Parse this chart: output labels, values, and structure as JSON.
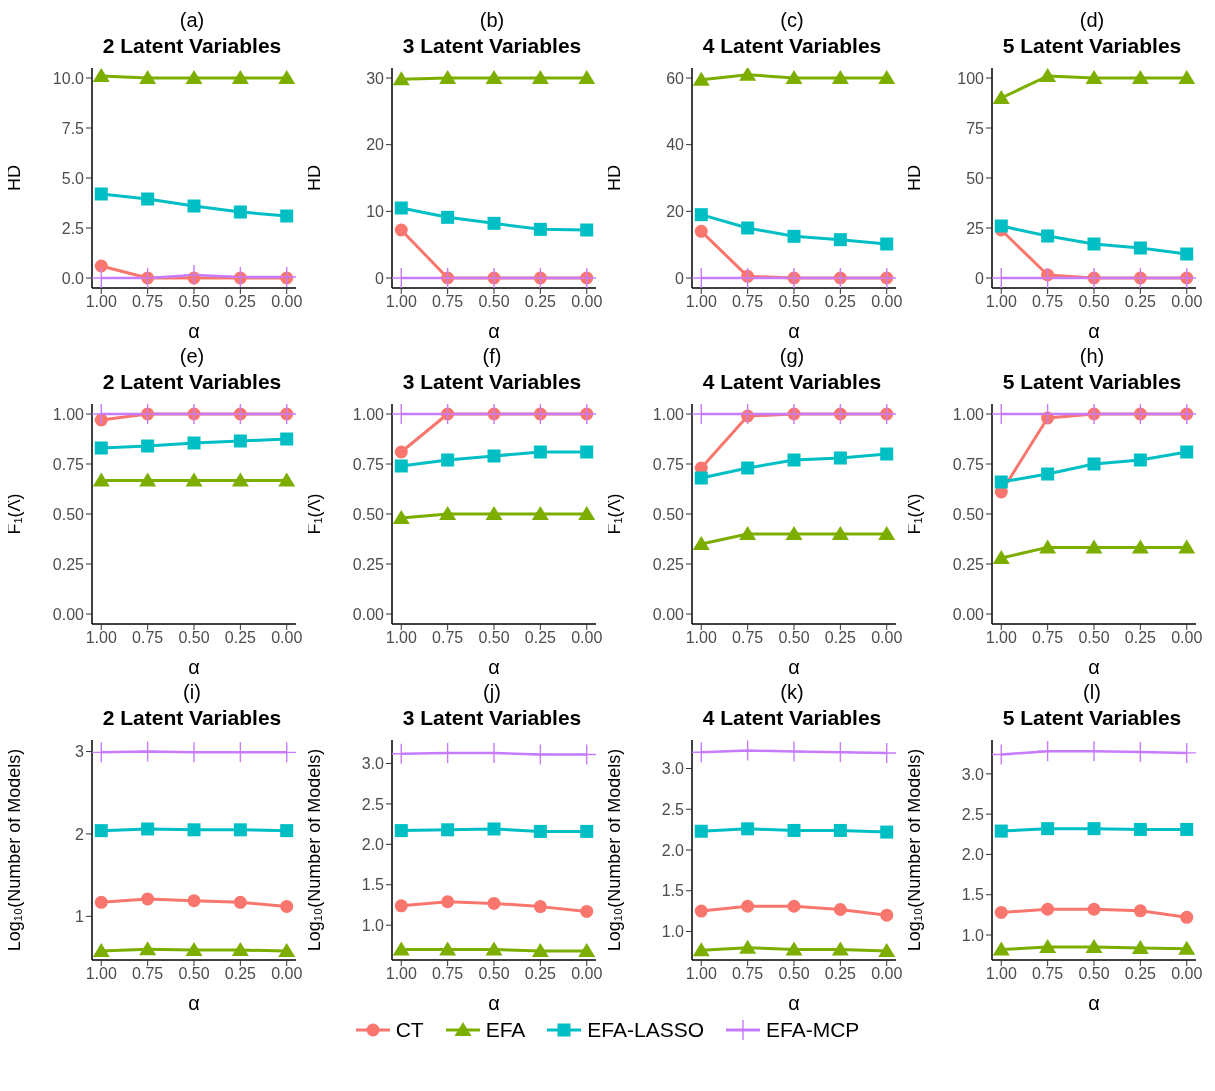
{
  "chart_data": [
    {
      "type": "line",
      "title": "(a)",
      "subtitle": "2 Latent Variables",
      "xlabel": "α",
      "ylabel": "HD",
      "legend": "bottom",
      "x": [
        1,
        0.75,
        0.5,
        0.25,
        0
      ],
      "xlim": [
        1.05,
        -0.05
      ],
      "xticks": [
        {
          "value": 1,
          "label": "1.00"
        },
        {
          "value": 0.75,
          "label": "0.75"
        },
        {
          "value": 0.5,
          "label": "0.50"
        },
        {
          "value": 0.25,
          "label": "0.25"
        },
        {
          "value": 0,
          "label": "0.00"
        }
      ],
      "ylim": [
        -0.5,
        10.5
      ],
      "yticks": [
        {
          "value": 0,
          "label": "0.0"
        },
        {
          "value": 2.5,
          "label": "2.5"
        },
        {
          "value": 5,
          "label": "5.0"
        },
        {
          "value": 7.5,
          "label": "7.5"
        },
        {
          "value": 10,
          "label": "10.0"
        }
      ],
      "series": [
        {
          "name": "CT",
          "color": "#f8766d",
          "marker": "circle",
          "values": [
            0.6,
            0,
            0,
            0,
            0
          ]
        },
        {
          "name": "EFA",
          "color": "#7cae00",
          "marker": "triangle",
          "values": [
            10.1,
            10,
            10,
            10,
            10
          ]
        },
        {
          "name": "EFA-LASSO",
          "color": "#00bfc4",
          "marker": "square",
          "values": [
            4.2,
            3.95,
            3.6,
            3.3,
            3.1
          ]
        },
        {
          "name": "EFA-MCP",
          "color": "#c77cff",
          "marker": "cross",
          "values": [
            0,
            0,
            0.15,
            0.05,
            0.05
          ]
        }
      ]
    },
    {
      "type": "line",
      "title": "(b)",
      "subtitle": "3 Latent Variables",
      "xlabel": "α",
      "ylabel": "HD",
      "x": [
        1,
        0.75,
        0.5,
        0.25,
        0
      ],
      "xlim": [
        1.05,
        -0.05
      ],
      "xticks": [
        {
          "value": 1,
          "label": "1.00"
        },
        {
          "value": 0.75,
          "label": "0.75"
        },
        {
          "value": 0.5,
          "label": "0.50"
        },
        {
          "value": 0.25,
          "label": "0.25"
        },
        {
          "value": 0,
          "label": "0.00"
        }
      ],
      "ylim": [
        -1.5,
        31.5
      ],
      "yticks": [
        0,
        10,
        20,
        30
      ],
      "series": [
        {
          "color": "#f8766d",
          "marker": "circle",
          "values": [
            7.2,
            0,
            0,
            0,
            0
          ]
        },
        {
          "color": "#7cae00",
          "marker": "triangle",
          "values": [
            29.8,
            30,
            30,
            30,
            30
          ]
        },
        {
          "color": "#00bfc4",
          "marker": "square",
          "values": [
            10.5,
            9.1,
            8.2,
            7.3,
            7.2
          ]
        },
        {
          "color": "#c77cff",
          "marker": "cross",
          "values": [
            0,
            0,
            0,
            0,
            0
          ]
        }
      ]
    },
    {
      "type": "line",
      "title": "(c)",
      "subtitle": "4 Latent Variables",
      "xlabel": "α",
      "ylabel": "HD",
      "x": [
        1,
        0.75,
        0.5,
        0.25,
        0
      ],
      "xlim": [
        1.05,
        -0.05
      ],
      "xticks": [
        {
          "value": 1,
          "label": "1.00"
        },
        {
          "value": 0.75,
          "label": "0.75"
        },
        {
          "value": 0.5,
          "label": "0.50"
        },
        {
          "value": 0.25,
          "label": "0.25"
        },
        {
          "value": 0,
          "label": "0.00"
        }
      ],
      "ylim": [
        -3,
        63
      ],
      "yticks": [
        0,
        20,
        40,
        60
      ],
      "series": [
        {
          "color": "#f8766d",
          "marker": "circle",
          "values": [
            14,
            0.5,
            0,
            0,
            0
          ]
        },
        {
          "color": "#7cae00",
          "marker": "triangle",
          "values": [
            59.5,
            61,
            60,
            60,
            60
          ]
        },
        {
          "color": "#00bfc4",
          "marker": "square",
          "values": [
            19,
            15,
            12.5,
            11.5,
            10.2
          ]
        },
        {
          "color": "#c77cff",
          "marker": "cross",
          "values": [
            0,
            0,
            0,
            0,
            0
          ]
        }
      ]
    },
    {
      "type": "line",
      "title": "(d)",
      "subtitle": "5 Latent Variables",
      "xlabel": "α",
      "ylabel": "HD",
      "x": [
        1,
        0.75,
        0.5,
        0.25,
        0
      ],
      "xlim": [
        1.05,
        -0.05
      ],
      "xticks": [
        {
          "value": 1,
          "label": "1.00"
        },
        {
          "value": 0.75,
          "label": "0.75"
        },
        {
          "value": 0.5,
          "label": "0.50"
        },
        {
          "value": 0.25,
          "label": "0.25"
        },
        {
          "value": 0,
          "label": "0.00"
        }
      ],
      "ylim": [
        -5,
        105
      ],
      "yticks": [
        0,
        25,
        50,
        75,
        100
      ],
      "series": [
        {
          "color": "#f8766d",
          "marker": "circle",
          "values": [
            24,
            1.5,
            0,
            0,
            0
          ]
        },
        {
          "color": "#7cae00",
          "marker": "triangle",
          "values": [
            90,
            101,
            100,
            100,
            100
          ]
        },
        {
          "color": "#00bfc4",
          "marker": "square",
          "values": [
            26,
            21,
            17,
            15,
            12
          ]
        },
        {
          "color": "#c77cff",
          "marker": "cross",
          "values": [
            0,
            0,
            0,
            0,
            0
          ]
        }
      ]
    },
    {
      "type": "line",
      "title": "(e)",
      "subtitle": "2 Latent Variables",
      "xlabel": "α",
      "ylabel": "F₁(Λ̂)",
      "x": [
        1,
        0.75,
        0.5,
        0.25,
        0
      ],
      "xlim": [
        1.05,
        -0.05
      ],
      "xticks": [
        {
          "value": 1,
          "label": "1.00"
        },
        {
          "value": 0.75,
          "label": "0.75"
        },
        {
          "value": 0.5,
          "label": "0.50"
        },
        {
          "value": 0.25,
          "label": "0.25"
        },
        {
          "value": 0,
          "label": "0.00"
        }
      ],
      "ylim": [
        -0.05,
        1.05
      ],
      "yticks": [
        {
          "value": 0,
          "label": "0.00"
        },
        {
          "value": 0.25,
          "label": "0.25"
        },
        {
          "value": 0.5,
          "label": "0.50"
        },
        {
          "value": 0.75,
          "label": "0.75"
        },
        {
          "value": 1,
          "label": "1.00"
        }
      ],
      "series": [
        {
          "color": "#f8766d",
          "marker": "circle",
          "values": [
            0.97,
            1,
            1,
            1,
            1
          ]
        },
        {
          "color": "#7cae00",
          "marker": "triangle",
          "values": [
            0.667,
            0.667,
            0.667,
            0.667,
            0.667
          ]
        },
        {
          "color": "#00bfc4",
          "marker": "square",
          "values": [
            0.83,
            0.84,
            0.855,
            0.865,
            0.875
          ]
        },
        {
          "color": "#c77cff",
          "marker": "cross",
          "values": [
            1,
            1,
            1,
            1,
            1
          ]
        }
      ]
    },
    {
      "type": "line",
      "title": "(f)",
      "subtitle": "3 Latent Variables",
      "xlabel": "α",
      "ylabel": "F₁(Λ̂)",
      "x": [
        1,
        0.75,
        0.5,
        0.25,
        0
      ],
      "xlim": [
        1.05,
        -0.05
      ],
      "xticks": [
        {
          "value": 1,
          "label": "1.00"
        },
        {
          "value": 0.75,
          "label": "0.75"
        },
        {
          "value": 0.5,
          "label": "0.50"
        },
        {
          "value": 0.25,
          "label": "0.25"
        },
        {
          "value": 0,
          "label": "0.00"
        }
      ],
      "ylim": [
        -0.05,
        1.05
      ],
      "yticks": [
        {
          "value": 0,
          "label": "0.00"
        },
        {
          "value": 0.25,
          "label": "0.25"
        },
        {
          "value": 0.5,
          "label": "0.50"
        },
        {
          "value": 0.75,
          "label": "0.75"
        },
        {
          "value": 1,
          "label": "1.00"
        }
      ],
      "series": [
        {
          "color": "#f8766d",
          "marker": "circle",
          "values": [
            0.81,
            1,
            1,
            1,
            1
          ]
        },
        {
          "color": "#7cae00",
          "marker": "triangle",
          "values": [
            0.48,
            0.5,
            0.5,
            0.5,
            0.5
          ]
        },
        {
          "color": "#00bfc4",
          "marker": "square",
          "values": [
            0.74,
            0.77,
            0.79,
            0.81,
            0.81
          ]
        },
        {
          "color": "#c77cff",
          "marker": "cross",
          "values": [
            1,
            1,
            1,
            1,
            1
          ]
        }
      ]
    },
    {
      "type": "line",
      "title": "(g)",
      "subtitle": "4 Latent Variables",
      "xlabel": "α",
      "ylabel": "F₁(Λ̂)",
      "x": [
        1,
        0.75,
        0.5,
        0.25,
        0
      ],
      "xlim": [
        1.05,
        -0.05
      ],
      "xticks": [
        {
          "value": 1,
          "label": "1.00"
        },
        {
          "value": 0.75,
          "label": "0.75"
        },
        {
          "value": 0.5,
          "label": "0.50"
        },
        {
          "value": 0.25,
          "label": "0.25"
        },
        {
          "value": 0,
          "label": "0.00"
        }
      ],
      "ylim": [
        -0.05,
        1.05
      ],
      "yticks": [
        {
          "value": 0,
          "label": "0.00"
        },
        {
          "value": 0.25,
          "label": "0.25"
        },
        {
          "value": 0.5,
          "label": "0.50"
        },
        {
          "value": 0.75,
          "label": "0.75"
        },
        {
          "value": 1,
          "label": "1.00"
        }
      ],
      "series": [
        {
          "color": "#f8766d",
          "marker": "circle",
          "values": [
            0.73,
            0.99,
            1,
            1,
            1
          ]
        },
        {
          "color": "#7cae00",
          "marker": "triangle",
          "values": [
            0.35,
            0.4,
            0.4,
            0.4,
            0.4
          ]
        },
        {
          "color": "#00bfc4",
          "marker": "square",
          "values": [
            0.68,
            0.73,
            0.77,
            0.78,
            0.8
          ]
        },
        {
          "color": "#c77cff",
          "marker": "cross",
          "values": [
            1,
            1,
            1,
            1,
            1
          ]
        }
      ]
    },
    {
      "type": "line",
      "title": "(h)",
      "subtitle": "5 Latent Variables",
      "xlabel": "α",
      "ylabel": "F₁(Λ̂)",
      "x": [
        1,
        0.75,
        0.5,
        0.25,
        0
      ],
      "xlim": [
        1.05,
        -0.05
      ],
      "xticks": [
        {
          "value": 1,
          "label": "1.00"
        },
        {
          "value": 0.75,
          "label": "0.75"
        },
        {
          "value": 0.5,
          "label": "0.50"
        },
        {
          "value": 0.25,
          "label": "0.25"
        },
        {
          "value": 0,
          "label": "0.00"
        }
      ],
      "ylim": [
        -0.05,
        1.05
      ],
      "yticks": [
        {
          "value": 0,
          "label": "0.00"
        },
        {
          "value": 0.25,
          "label": "0.25"
        },
        {
          "value": 0.5,
          "label": "0.50"
        },
        {
          "value": 0.75,
          "label": "0.75"
        },
        {
          "value": 1,
          "label": "1.00"
        }
      ],
      "series": [
        {
          "color": "#f8766d",
          "marker": "circle",
          "values": [
            0.61,
            0.98,
            1,
            1,
            1
          ]
        },
        {
          "color": "#7cae00",
          "marker": "triangle",
          "values": [
            0.28,
            0.333,
            0.333,
            0.333,
            0.333
          ]
        },
        {
          "color": "#00bfc4",
          "marker": "square",
          "values": [
            0.66,
            0.7,
            0.75,
            0.77,
            0.81
          ]
        },
        {
          "color": "#c77cff",
          "marker": "cross",
          "values": [
            1,
            1,
            1,
            1,
            1
          ]
        }
      ]
    },
    {
      "type": "line",
      "title": "(i)",
      "subtitle": "2 Latent Variables",
      "xlabel": "α",
      "ylabel": "Log₁₀(Number of Models)",
      "x": [
        1,
        0.75,
        0.5,
        0.25,
        0
      ],
      "xlim": [
        1.05,
        -0.05
      ],
      "xticks": [
        {
          "value": 1,
          "label": "1.00"
        },
        {
          "value": 0.75,
          "label": "0.75"
        },
        {
          "value": 0.5,
          "label": "0.50"
        },
        {
          "value": 0.25,
          "label": "0.25"
        },
        {
          "value": 0,
          "label": "0.00"
        }
      ],
      "ylim": [
        0.47,
        3.14
      ],
      "yticks": [
        1,
        2,
        3
      ],
      "series": [
        {
          "color": "#f8766d",
          "marker": "circle",
          "values": [
            1.17,
            1.21,
            1.19,
            1.17,
            1.12
          ]
        },
        {
          "color": "#7cae00",
          "marker": "triangle",
          "values": [
            0.58,
            0.6,
            0.59,
            0.59,
            0.58
          ]
        },
        {
          "color": "#00bfc4",
          "marker": "square",
          "values": [
            2.04,
            2.06,
            2.05,
            2.05,
            2.04
          ]
        },
        {
          "color": "#c77cff",
          "marker": "cross",
          "values": [
            2.99,
            3,
            2.99,
            2.99,
            2.99
          ]
        }
      ]
    },
    {
      "type": "line",
      "title": "(j)",
      "subtitle": "3 Latent Variables",
      "xlabel": "α",
      "ylabel": "Log₁₀(Number of Models)",
      "x": [
        1,
        0.75,
        0.5,
        0.25,
        0
      ],
      "xlim": [
        1.05,
        -0.05
      ],
      "xticks": [
        {
          "value": 1,
          "label": "1.00"
        },
        {
          "value": 0.75,
          "label": "0.75"
        },
        {
          "value": 0.5,
          "label": "0.50"
        },
        {
          "value": 0.25,
          "label": "0.25"
        },
        {
          "value": 0,
          "label": "0.00"
        }
      ],
      "ylim": [
        0.57,
        3.29
      ],
      "yticks": [
        {
          "value": 1,
          "label": "1.0"
        },
        {
          "value": 1.5,
          "label": "1.5"
        },
        {
          "value": 2,
          "label": "2.0"
        },
        {
          "value": 2.5,
          "label": "2.5"
        },
        {
          "value": 3,
          "label": "3.0"
        }
      ],
      "series": [
        {
          "color": "#f8766d",
          "marker": "circle",
          "values": [
            1.24,
            1.29,
            1.27,
            1.23,
            1.17
          ]
        },
        {
          "color": "#7cae00",
          "marker": "triangle",
          "values": [
            0.7,
            0.7,
            0.7,
            0.68,
            0.68
          ]
        },
        {
          "color": "#00bfc4",
          "marker": "square",
          "values": [
            2.17,
            2.18,
            2.19,
            2.16,
            2.16
          ]
        },
        {
          "color": "#c77cff",
          "marker": "cross",
          "values": [
            3.12,
            3.13,
            3.13,
            3.11,
            3.11
          ]
        }
      ]
    },
    {
      "type": "line",
      "title": "(k)",
      "subtitle": "4 Latent Variables",
      "xlabel": "α",
      "ylabel": "Log₁₀(Number of Models)",
      "x": [
        1,
        0.75,
        0.5,
        0.25,
        0
      ],
      "xlim": [
        1.05,
        -0.05
      ],
      "xticks": [
        {
          "value": 1,
          "label": "1.00"
        },
        {
          "value": 0.75,
          "label": "0.75"
        },
        {
          "value": 0.5,
          "label": "0.50"
        },
        {
          "value": 0.25,
          "label": "0.25"
        },
        {
          "value": 0,
          "label": "0.00"
        }
      ],
      "ylim": [
        0.65,
        3.35
      ],
      "yticks": [
        {
          "value": 1,
          "label": "1.0"
        },
        {
          "value": 1.5,
          "label": "1.5"
        },
        {
          "value": 2,
          "label": "2.0"
        },
        {
          "value": 2.5,
          "label": "2.5"
        },
        {
          "value": 3,
          "label": "3.0"
        }
      ],
      "series": [
        {
          "color": "#f8766d",
          "marker": "circle",
          "values": [
            1.25,
            1.31,
            1.31,
            1.27,
            1.2
          ]
        },
        {
          "color": "#7cae00",
          "marker": "triangle",
          "values": [
            0.77,
            0.8,
            0.78,
            0.78,
            0.76
          ]
        },
        {
          "color": "#00bfc4",
          "marker": "square",
          "values": [
            2.23,
            2.26,
            2.24,
            2.24,
            2.22
          ]
        },
        {
          "color": "#c77cff",
          "marker": "cross",
          "values": [
            3.2,
            3.22,
            3.21,
            3.2,
            3.19
          ]
        }
      ]
    },
    {
      "type": "line",
      "title": "(l)",
      "subtitle": "5 Latent Variables",
      "xlabel": "α",
      "ylabel": "Log₁₀(Number of Models)",
      "x": [
        1,
        0.75,
        0.5,
        0.25,
        0
      ],
      "xlim": [
        1.05,
        -0.05
      ],
      "xticks": [
        {
          "value": 1,
          "label": "1.00"
        },
        {
          "value": 0.75,
          "label": "0.75"
        },
        {
          "value": 0.5,
          "label": "0.50"
        },
        {
          "value": 0.25,
          "label": "0.25"
        },
        {
          "value": 0,
          "label": "0.00"
        }
      ],
      "ylim": [
        0.69,
        3.42
      ],
      "yticks": [
        {
          "value": 1,
          "label": "1.0"
        },
        {
          "value": 1.5,
          "label": "1.5"
        },
        {
          "value": 2,
          "label": "2.0"
        },
        {
          "value": 2.5,
          "label": "2.5"
        },
        {
          "value": 3,
          "label": "3.0"
        }
      ],
      "series": [
        {
          "color": "#f8766d",
          "marker": "circle",
          "values": [
            1.28,
            1.32,
            1.32,
            1.3,
            1.22
          ]
        },
        {
          "color": "#7cae00",
          "marker": "triangle",
          "values": [
            0.82,
            0.85,
            0.85,
            0.84,
            0.83
          ]
        },
        {
          "color": "#00bfc4",
          "marker": "square",
          "values": [
            2.29,
            2.32,
            2.32,
            2.31,
            2.31
          ]
        },
        {
          "color": "#c77cff",
          "marker": "cross",
          "values": [
            3.24,
            3.28,
            3.28,
            3.27,
            3.26
          ]
        }
      ]
    }
  ]
}
